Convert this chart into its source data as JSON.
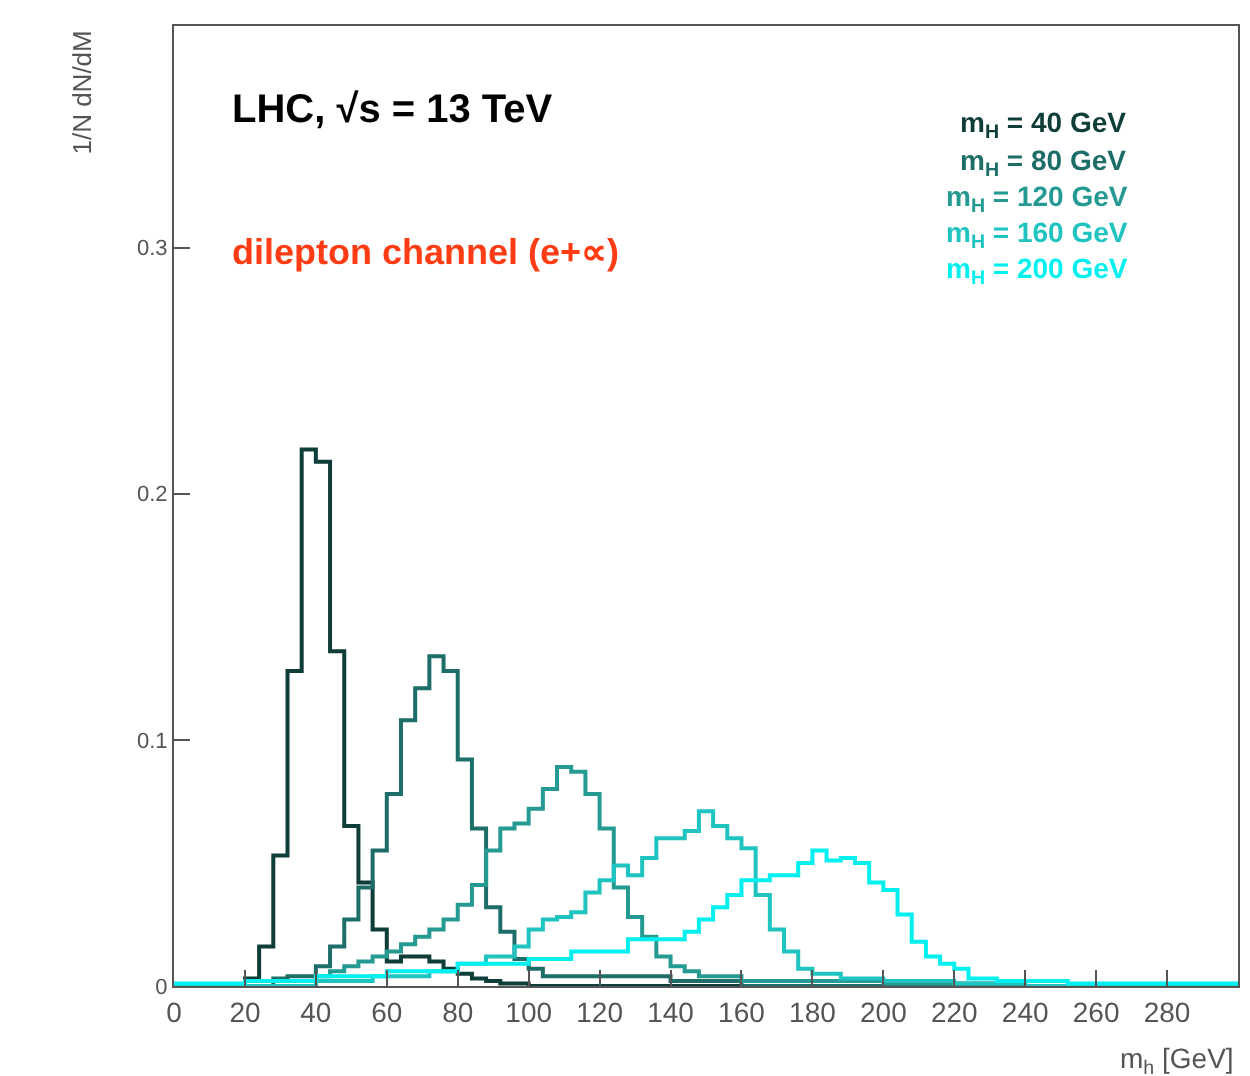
{
  "chart_data": {
    "type": "histogram",
    "xlabel": "m$_{h}$ [GeV]",
    "ylabel": "1/N dN/dM",
    "annotations": [
      "LHC, √s = 13 TeV",
      "dilepton channel (e+∝)"
    ],
    "bins": [
      0,
      4,
      8,
      12,
      16,
      20,
      24,
      28,
      32,
      36,
      40,
      44,
      48,
      52,
      56,
      60,
      64,
      68,
      72,
      76,
      80,
      84,
      88,
      92,
      96,
      100,
      104,
      108,
      112,
      116,
      120,
      124,
      128,
      132,
      136,
      140,
      144,
      148,
      152,
      156,
      160,
      164,
      168,
      172,
      176,
      180,
      184,
      188,
      192,
      196,
      200,
      204,
      208,
      212,
      216,
      220,
      224,
      228,
      232,
      236,
      240,
      244,
      248,
      252,
      256,
      260,
      264,
      268,
      272,
      276,
      280,
      284,
      288,
      292,
      296,
      300
    ],
    "series": [
      {
        "name": "m$_{H}$ = 40 GeV",
        "color": "#0f3d38",
        "values": [
          0,
          0,
          0,
          0,
          0,
          0.003,
          0.016,
          0.053,
          0.128,
          0.218,
          0.213,
          0.136,
          0.065,
          0.042,
          0.023,
          0.01,
          0.012,
          0.012,
          0.01,
          0.007,
          0.005,
          0.003,
          0.002,
          0.001,
          0.001,
          0,
          0,
          0,
          0,
          0,
          0,
          0,
          0,
          0,
          0,
          0,
          0,
          0,
          0,
          0,
          0,
          0,
          0,
          0,
          0,
          0,
          0,
          0,
          0,
          0,
          0,
          0,
          0,
          0,
          0,
          0,
          0,
          0,
          0,
          0,
          0,
          0,
          0,
          0,
          0,
          0,
          0,
          0,
          0,
          0,
          0,
          0,
          0,
          0,
          0
        ]
      },
      {
        "name": "m$_{H}$ = 80 GeV",
        "color": "#1d6e68",
        "values": [
          0,
          0,
          0,
          0,
          0,
          0,
          0,
          0.003,
          0.004,
          0.004,
          0.008,
          0.016,
          0.027,
          0.04,
          0.055,
          0.078,
          0.108,
          0.121,
          0.134,
          0.128,
          0.092,
          0.064,
          0.032,
          0.022,
          0.011,
          0.007,
          0.004,
          0.004,
          0.004,
          0.004,
          0.004,
          0.004,
          0.004,
          0.004,
          0.004,
          0.002,
          0.002,
          0.002,
          0.002,
          0.002,
          0,
          0,
          0,
          0,
          0,
          0,
          0,
          0,
          0,
          0,
          0,
          0,
          0,
          0,
          0,
          0,
          0,
          0,
          0,
          0,
          0,
          0,
          0,
          0,
          0,
          0,
          0,
          0,
          0,
          0,
          0,
          0,
          0,
          0,
          0
        ]
      },
      {
        "name": "m$_{H}$ = 120 GeV",
        "color": "#259a93",
        "values": [
          0,
          0,
          0,
          0,
          0,
          0,
          0,
          0,
          0,
          0,
          0.004,
          0.006,
          0.008,
          0.01,
          0.012,
          0.014,
          0.017,
          0.02,
          0.023,
          0.027,
          0.033,
          0.041,
          0.055,
          0.064,
          0.066,
          0.072,
          0.08,
          0.089,
          0.087,
          0.078,
          0.064,
          0.04,
          0.028,
          0.02,
          0.012,
          0.008,
          0.006,
          0.004,
          0.004,
          0.004,
          0.002,
          0.002,
          0.002,
          0.002,
          0.002,
          0.002,
          0.002,
          0.002,
          0.002,
          0.002,
          0.001,
          0.001,
          0.001,
          0.001,
          0.001,
          0.001,
          0.001,
          0.001,
          0.001,
          0.001,
          0,
          0,
          0,
          0,
          0,
          0,
          0,
          0,
          0,
          0,
          0,
          0,
          0,
          0,
          0
        ]
      },
      {
        "name": "m$_{H}$ = 160 GeV",
        "color": "#1fc4c1",
        "values": [
          0,
          0,
          0,
          0,
          0,
          0,
          0,
          0,
          0,
          0,
          0.002,
          0.002,
          0.002,
          0.002,
          0.004,
          0.004,
          0.004,
          0.004,
          0.006,
          0.006,
          0.009,
          0.009,
          0.012,
          0.012,
          0.016,
          0.023,
          0.027,
          0.028,
          0.03,
          0.038,
          0.043,
          0.049,
          0.045,
          0.052,
          0.06,
          0.06,
          0.063,
          0.071,
          0.065,
          0.06,
          0.056,
          0.037,
          0.023,
          0.014,
          0.007,
          0.005,
          0.005,
          0.003,
          0.003,
          0.003,
          0.002,
          0.002,
          0.002,
          0.002,
          0.002,
          0.001,
          0.001,
          0.001,
          0.001,
          0.001,
          0,
          0,
          0,
          0,
          0,
          0,
          0,
          0,
          0,
          0,
          0,
          0,
          0,
          0,
          0
        ]
      },
      {
        "name": "m$_{H}$ = 200 GeV",
        "color": "#00f0f0",
        "values": [
          0.001,
          0.001,
          0.001,
          0.001,
          0.001,
          0.002,
          0.002,
          0.002,
          0.002,
          0.002,
          0.004,
          0.004,
          0.004,
          0.004,
          0.004,
          0.006,
          0.006,
          0.006,
          0.006,
          0.006,
          0.009,
          0.009,
          0.009,
          0.009,
          0.009,
          0.011,
          0.011,
          0.011,
          0.014,
          0.014,
          0.014,
          0.014,
          0.019,
          0.019,
          0.019,
          0.019,
          0.022,
          0.027,
          0.032,
          0.037,
          0.043,
          0.043,
          0.045,
          0.045,
          0.05,
          0.055,
          0.051,
          0.052,
          0.05,
          0.042,
          0.039,
          0.029,
          0.018,
          0.012,
          0.009,
          0.007,
          0.003,
          0.003,
          0.002,
          0.002,
          0.002,
          0.002,
          0.002,
          0.001,
          0.001,
          0.001,
          0.001,
          0.001,
          0.001,
          0.001,
          0.001,
          0.001,
          0.001,
          0.001,
          0.001
        ]
      }
    ],
    "xlim": [
      0,
      300
    ],
    "ylim": [
      0,
      0.39
    ],
    "xticks": [
      0,
      20,
      40,
      60,
      80,
      100,
      120,
      140,
      160,
      180,
      200,
      220,
      240,
      260,
      280
    ],
    "yticks": [
      0,
      0.1,
      0.2,
      0.3
    ],
    "legend": "top right"
  }
}
